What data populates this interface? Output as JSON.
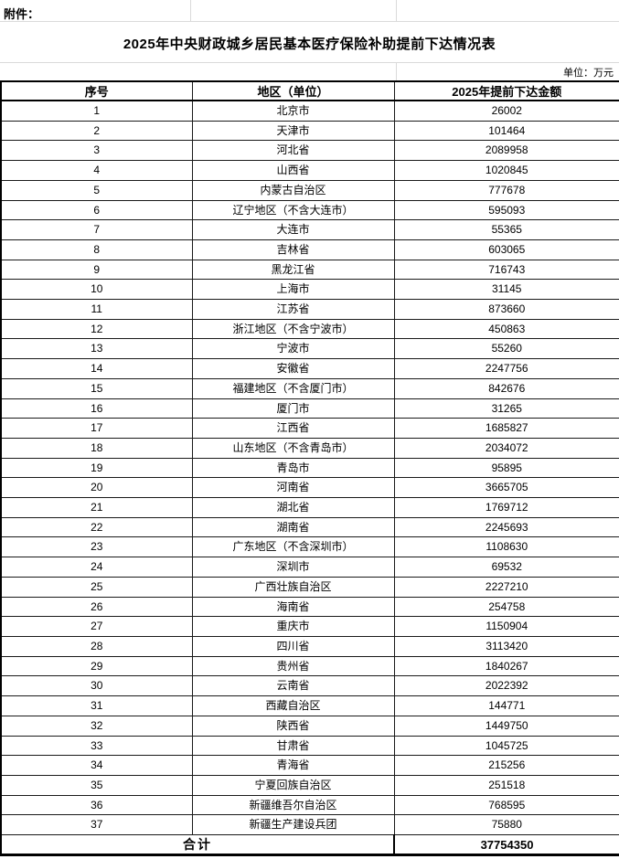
{
  "page": {
    "attachment_label": "附件：",
    "title": "2025年中央财政城乡居民基本医疗保险补助提前下达情况表",
    "unit_note": "单位：万元"
  },
  "table": {
    "columns": [
      "序号",
      "地区（单位）",
      "2025年提前下达金额"
    ],
    "rows": [
      {
        "index": "1",
        "region": "北京市",
        "amount": "26002"
      },
      {
        "index": "2",
        "region": "天津市",
        "amount": "101464"
      },
      {
        "index": "3",
        "region": "河北省",
        "amount": "2089958"
      },
      {
        "index": "4",
        "region": "山西省",
        "amount": "1020845"
      },
      {
        "index": "5",
        "region": "内蒙古自治区",
        "amount": "777678"
      },
      {
        "index": "6",
        "region": "辽宁地区（不含大连市）",
        "amount": "595093"
      },
      {
        "index": "7",
        "region": "大连市",
        "amount": "55365"
      },
      {
        "index": "8",
        "region": "吉林省",
        "amount": "603065"
      },
      {
        "index": "9",
        "region": "黑龙江省",
        "amount": "716743"
      },
      {
        "index": "10",
        "region": "上海市",
        "amount": "31145"
      },
      {
        "index": "11",
        "region": "江苏省",
        "amount": "873660"
      },
      {
        "index": "12",
        "region": "浙江地区（不含宁波市）",
        "amount": "450863"
      },
      {
        "index": "13",
        "region": "宁波市",
        "amount": "55260"
      },
      {
        "index": "14",
        "region": "安徽省",
        "amount": "2247756"
      },
      {
        "index": "15",
        "region": "福建地区（不含厦门市）",
        "amount": "842676"
      },
      {
        "index": "16",
        "region": "厦门市",
        "amount": "31265"
      },
      {
        "index": "17",
        "region": "江西省",
        "amount": "1685827"
      },
      {
        "index": "18",
        "region": "山东地区（不含青岛市）",
        "amount": "2034072"
      },
      {
        "index": "19",
        "region": "青岛市",
        "amount": "95895"
      },
      {
        "index": "20",
        "region": "河南省",
        "amount": "3665705"
      },
      {
        "index": "21",
        "region": "湖北省",
        "amount": "1769712"
      },
      {
        "index": "22",
        "region": "湖南省",
        "amount": "2245693"
      },
      {
        "index": "23",
        "region": "广东地区（不含深圳市）",
        "amount": "1108630"
      },
      {
        "index": "24",
        "region": "深圳市",
        "amount": "69532"
      },
      {
        "index": "25",
        "region": "广西壮族自治区",
        "amount": "2227210"
      },
      {
        "index": "26",
        "region": "海南省",
        "amount": "254758"
      },
      {
        "index": "27",
        "region": "重庆市",
        "amount": "1150904"
      },
      {
        "index": "28",
        "region": "四川省",
        "amount": "3113420"
      },
      {
        "index": "29",
        "region": "贵州省",
        "amount": "1840267"
      },
      {
        "index": "30",
        "region": "云南省",
        "amount": "2022392"
      },
      {
        "index": "31",
        "region": "西藏自治区",
        "amount": "144771"
      },
      {
        "index": "32",
        "region": "陕西省",
        "amount": "1449750"
      },
      {
        "index": "33",
        "region": "甘肃省",
        "amount": "1045725"
      },
      {
        "index": "34",
        "region": "青海省",
        "amount": "215256"
      },
      {
        "index": "35",
        "region": "宁夏回族自治区",
        "amount": "251518"
      },
      {
        "index": "36",
        "region": "新疆维吾尔自治区",
        "amount": "768595"
      },
      {
        "index": "37",
        "region": "新疆生产建设兵团",
        "amount": "75880"
      }
    ],
    "total": {
      "label": "合计",
      "amount": "37754350"
    }
  },
  "colors": {
    "background": "#ffffff",
    "text": "#000000",
    "table_border": "#000000",
    "faint_gridline": "#dadada"
  }
}
